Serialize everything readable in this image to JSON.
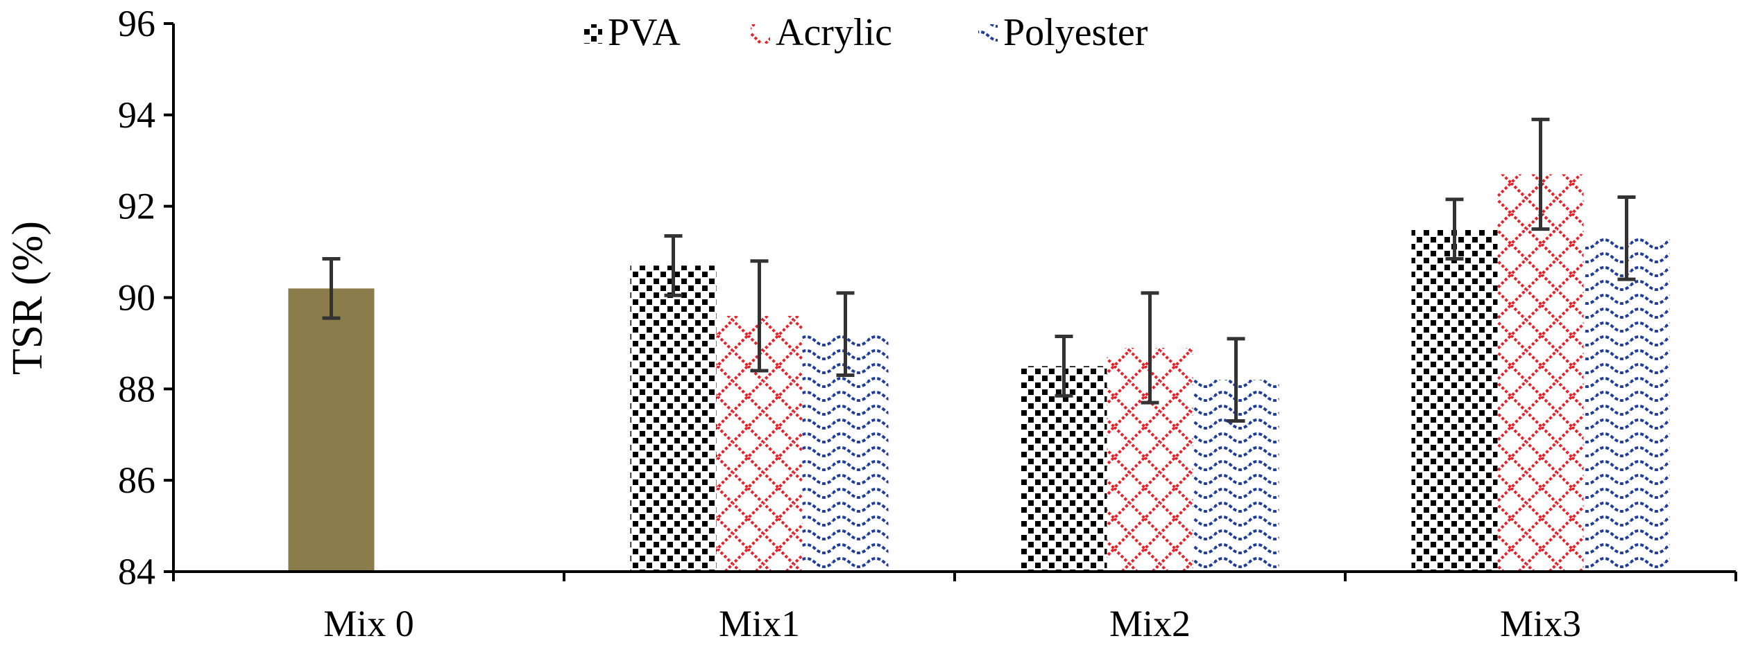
{
  "chart_data": {
    "type": "bar",
    "title": "",
    "xlabel": "",
    "ylabel": "TSR (%)",
    "ylim": [
      84,
      96
    ],
    "yticks": [
      84,
      86,
      88,
      90,
      92,
      94,
      96
    ],
    "grid": false,
    "legend_position": "top-center",
    "categories": [
      "Mix 0",
      "Mix1",
      "Mix2",
      "Mix3"
    ],
    "control": {
      "category": "Mix 0",
      "value": 90.2,
      "error": 0.65,
      "color": "#8b7d4b"
    },
    "series": [
      {
        "name": "PVA",
        "pattern": "checker",
        "color": "#000000",
        "values": [
          null,
          90.7,
          88.5,
          91.5
        ],
        "errors": [
          null,
          0.65,
          0.65,
          0.65
        ]
      },
      {
        "name": "Acrylic",
        "pattern": "diamond",
        "color": "#e8202a",
        "values": [
          null,
          89.6,
          88.9,
          92.7
        ],
        "errors": [
          null,
          1.2,
          1.2,
          1.2
        ]
      },
      {
        "name": "Polyester",
        "pattern": "wave",
        "color": "#1f3d99",
        "values": [
          null,
          89.2,
          88.2,
          91.3
        ],
        "errors": [
          null,
          0.9,
          0.9,
          0.9
        ]
      }
    ],
    "error_bar_color": "#333333"
  }
}
